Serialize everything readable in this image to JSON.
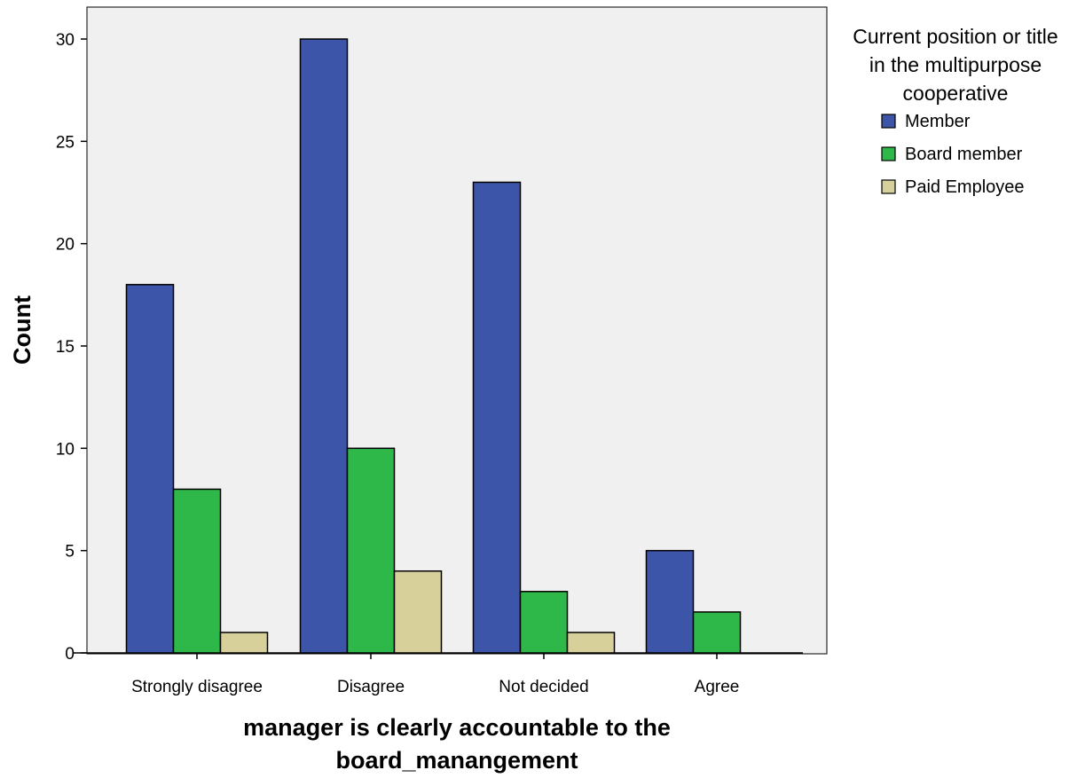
{
  "chart_data": {
    "type": "bar",
    "categories": [
      "Strongly disagree",
      "Disagree",
      "Not decided",
      "Agree"
    ],
    "series": [
      {
        "name": "Member",
        "values": [
          18,
          30,
          23,
          5
        ],
        "color": "#3c55a8"
      },
      {
        "name": "Board member",
        "values": [
          8,
          10,
          3,
          2
        ],
        "color": "#2eb84a"
      },
      {
        "name": "Paid Employee",
        "values": [
          1,
          4,
          1,
          0
        ],
        "color": "#d8d09a"
      }
    ],
    "xlabel": [
      "manager is clearly accountable to the",
      "board_manangement"
    ],
    "ylabel": "Count",
    "ylim": [
      0,
      30
    ],
    "yticks": [
      "0",
      "5",
      "10",
      "15",
      "20",
      "25",
      "30"
    ],
    "legend": {
      "title": [
        "Current position or title",
        "in the multipurpose",
        "cooperative"
      ],
      "placement": "right"
    },
    "plot_background": "#f0f0f0",
    "grid": false
  }
}
